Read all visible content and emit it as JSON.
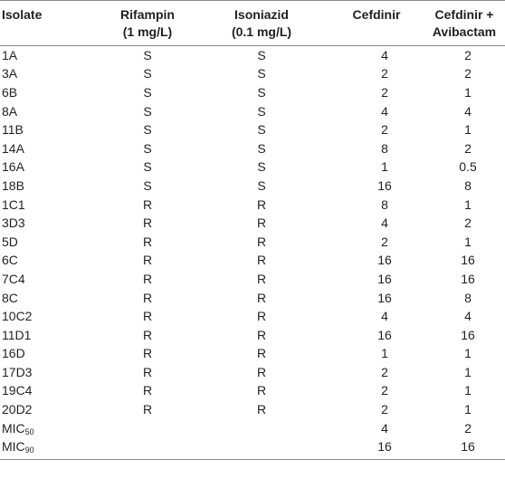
{
  "headers": {
    "isolate": "Isolate",
    "rifampin_name": "Rifampin",
    "rifampin_conc": "(1 mg/L)",
    "isoniazid_name": "Isoniazid",
    "isoniazid_conc": "(0.1 mg/L)",
    "cefdinir": "Cefdinir",
    "combo_line1": "Cefdinir +",
    "combo_line2": "Avibactam"
  },
  "rows": [
    {
      "isolate": "1A",
      "rifampin": "S",
      "isoniazid": "S",
      "cefdinir": "4",
      "combo": "2"
    },
    {
      "isolate": "3A",
      "rifampin": "S",
      "isoniazid": "S",
      "cefdinir": "2",
      "combo": "2"
    },
    {
      "isolate": "6B",
      "rifampin": "S",
      "isoniazid": "S",
      "cefdinir": "2",
      "combo": "1"
    },
    {
      "isolate": "8A",
      "rifampin": "S",
      "isoniazid": "S",
      "cefdinir": "4",
      "combo": "4"
    },
    {
      "isolate": "11B",
      "rifampin": "S",
      "isoniazid": "S",
      "cefdinir": "2",
      "combo": "1"
    },
    {
      "isolate": "14A",
      "rifampin": "S",
      "isoniazid": "S",
      "cefdinir": "8",
      "combo": "2"
    },
    {
      "isolate": "16A",
      "rifampin": "S",
      "isoniazid": "S",
      "cefdinir": "1",
      "combo": "0.5"
    },
    {
      "isolate": "18B",
      "rifampin": "S",
      "isoniazid": "S",
      "cefdinir": "16",
      "combo": "8"
    },
    {
      "isolate": "1C1",
      "rifampin": "R",
      "isoniazid": "R",
      "cefdinir": "8",
      "combo": "1"
    },
    {
      "isolate": "3D3",
      "rifampin": "R",
      "isoniazid": "R",
      "cefdinir": "4",
      "combo": "2"
    },
    {
      "isolate": "5D",
      "rifampin": "R",
      "isoniazid": "R",
      "cefdinir": "2",
      "combo": "1"
    },
    {
      "isolate": "6C",
      "rifampin": "R",
      "isoniazid": "R",
      "cefdinir": "16",
      "combo": "16"
    },
    {
      "isolate": "7C4",
      "rifampin": "R",
      "isoniazid": "R",
      "cefdinir": "16",
      "combo": "16"
    },
    {
      "isolate": "8C",
      "rifampin": "R",
      "isoniazid": "R",
      "cefdinir": "16",
      "combo": "8"
    },
    {
      "isolate": "10C2",
      "rifampin": "R",
      "isoniazid": "R",
      "cefdinir": "4",
      "combo": "4"
    },
    {
      "isolate": "11D1",
      "rifampin": "R",
      "isoniazid": "R",
      "cefdinir": "16",
      "combo": "16"
    },
    {
      "isolate": "16D",
      "rifampin": "R",
      "isoniazid": "R",
      "cefdinir": "1",
      "combo": "1"
    },
    {
      "isolate": "17D3",
      "rifampin": "R",
      "isoniazid": "R",
      "cefdinir": "2",
      "combo": "1"
    },
    {
      "isolate": "19C4",
      "rifampin": "R",
      "isoniazid": "R",
      "cefdinir": "2",
      "combo": "1"
    },
    {
      "isolate": "20D2",
      "rifampin": "R",
      "isoniazid": "R",
      "cefdinir": "2",
      "combo": "1"
    }
  ],
  "summary": [
    {
      "label": "MIC",
      "sub": "50",
      "rifampin": "",
      "isoniazid": "",
      "cefdinir": "4",
      "combo": "2"
    },
    {
      "label": "MIC",
      "sub": "90",
      "rifampin": "",
      "isoniazid": "",
      "cefdinir": "16",
      "combo": "16"
    }
  ]
}
